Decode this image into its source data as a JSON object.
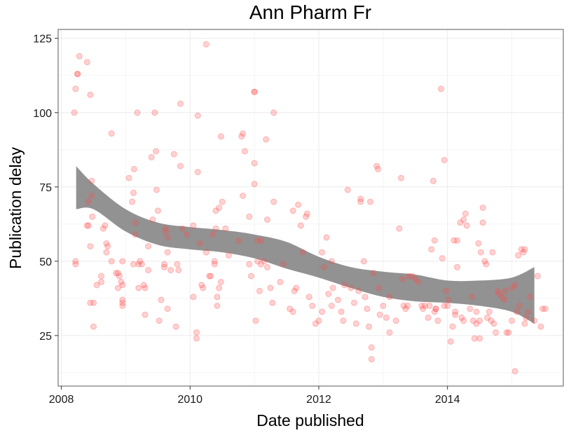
{
  "chart_data": {
    "type": "scatter",
    "title": "Ann Pharm Fr",
    "xlabel": "Date published",
    "ylabel": "Publication delay",
    "x_is_date": true,
    "xlim": [
      2007.95,
      2015.8
    ],
    "ylim": [
      8,
      128
    ],
    "x_ticks": [
      2008,
      2010,
      2012,
      2014
    ],
    "x_tick_labels": [
      "2008",
      "2010",
      "2012",
      "2014"
    ],
    "y_ticks": [
      25,
      50,
      75,
      100,
      125
    ],
    "y_tick_labels": [
      "25",
      "50",
      "75",
      "100",
      "125"
    ],
    "grid": true,
    "background": "#ffffff",
    "panel_border_color": "#7f7f7f",
    "point_color": "#ff4d4d",
    "point_opacity": 0.25,
    "band_color": "#7f7f7f",
    "series": [
      {
        "points": [
          [
            2008.2,
            100
          ],
          [
            2008.22,
            108
          ],
          [
            2008.25,
            113
          ],
          [
            2008.25,
            113
          ],
          [
            2008.28,
            119
          ],
          [
            2008.22,
            50
          ],
          [
            2008.22,
            49
          ],
          [
            2008.4,
            117
          ],
          [
            2008.45,
            106
          ],
          [
            2008.4,
            62
          ],
          [
            2008.42,
            62
          ],
          [
            2008.42,
            70
          ],
          [
            2008.47,
            72
          ],
          [
            2008.47,
            77
          ],
          [
            2008.48,
            65
          ],
          [
            2008.45,
            55
          ],
          [
            2008.45,
            36
          ],
          [
            2008.5,
            36
          ],
          [
            2008.5,
            28
          ],
          [
            2008.55,
            42
          ],
          [
            2008.62,
            45
          ],
          [
            2008.65,
            61
          ],
          [
            2008.68,
            62
          ],
          [
            2008.7,
            56
          ],
          [
            2008.7,
            53
          ],
          [
            2008.72,
            55
          ],
          [
            2008.62,
            43
          ],
          [
            2008.78,
            50
          ],
          [
            2008.78,
            93
          ],
          [
            2008.85,
            46
          ],
          [
            2008.88,
            46
          ],
          [
            2008.9,
            45
          ],
          [
            2008.93,
            43
          ],
          [
            2008.95,
            50
          ],
          [
            2008.95,
            36
          ],
          [
            2008.95,
            35
          ],
          [
            2008.95,
            37
          ],
          [
            2008.88,
            41
          ],
          [
            2008.95,
            42
          ],
          [
            2009.05,
            78
          ],
          [
            2009.1,
            70
          ],
          [
            2009.12,
            73
          ],
          [
            2009.13,
            81
          ],
          [
            2009.15,
            63
          ],
          [
            2009.15,
            59
          ],
          [
            2009.2,
            49
          ],
          [
            2009.22,
            50
          ],
          [
            2009.25,
            49
          ],
          [
            2009.28,
            42
          ],
          [
            2009.3,
            32
          ],
          [
            2009.3,
            41
          ],
          [
            2009.2,
            41
          ],
          [
            2009.12,
            49
          ],
          [
            2009.18,
            100
          ],
          [
            2009.35,
            55
          ],
          [
            2009.35,
            47
          ],
          [
            2009.4,
            85
          ],
          [
            2009.42,
            64
          ],
          [
            2009.45,
            100
          ],
          [
            2009.47,
            87
          ],
          [
            2009.48,
            74
          ],
          [
            2009.5,
            67
          ],
          [
            2009.52,
            30
          ],
          [
            2009.55,
            37
          ],
          [
            2009.6,
            49
          ],
          [
            2009.62,
            60
          ],
          [
            2009.62,
            61
          ],
          [
            2009.65,
            58
          ],
          [
            2009.65,
            53
          ],
          [
            2009.6,
            48
          ],
          [
            2009.65,
            34
          ],
          [
            2009.75,
            86
          ],
          [
            2009.78,
            28
          ],
          [
            2009.8,
            49
          ],
          [
            2009.82,
            47
          ],
          [
            2009.85,
            103
          ],
          [
            2009.85,
            82
          ],
          [
            2009.88,
            61
          ],
          [
            2009.7,
            47
          ],
          [
            2009.95,
            59
          ],
          [
            2010.05,
            62
          ],
          [
            2010.05,
            38
          ],
          [
            2010.1,
            24
          ],
          [
            2010.1,
            26
          ],
          [
            2010.12,
            99
          ],
          [
            2010.12,
            80
          ],
          [
            2010.15,
            56
          ],
          [
            2010.18,
            42
          ],
          [
            2010.2,
            41
          ],
          [
            2010.25,
            123
          ],
          [
            2010.25,
            53
          ],
          [
            2010.3,
            45
          ],
          [
            2010.32,
            45
          ],
          [
            2010.35,
            59
          ],
          [
            2010.38,
            50
          ],
          [
            2010.38,
            49
          ],
          [
            2010.4,
            61
          ],
          [
            2010.42,
            38
          ],
          [
            2010.42,
            35
          ],
          [
            2010.45,
            41
          ],
          [
            2010.48,
            43
          ],
          [
            2010.4,
            67
          ],
          [
            2010.45,
            68
          ],
          [
            2010.48,
            92
          ],
          [
            2010.5,
            70
          ],
          [
            2010.55,
            61
          ],
          [
            2010.6,
            52
          ],
          [
            2010.75,
            57
          ],
          [
            2010.8,
            92
          ],
          [
            2010.82,
            93
          ],
          [
            2010.82,
            72
          ],
          [
            2010.85,
            87
          ],
          [
            2010.92,
            65
          ],
          [
            2010.92,
            49
          ],
          [
            2010.95,
            45
          ],
          [
            2011.0,
            107
          ],
          [
            2011.0,
            107
          ],
          [
            2011.0,
            83
          ],
          [
            2011.0,
            76
          ],
          [
            2011.02,
            30
          ],
          [
            2011.05,
            57
          ],
          [
            2011.05,
            50
          ],
          [
            2011.08,
            40
          ],
          [
            2011.1,
            57
          ],
          [
            2011.1,
            49
          ],
          [
            2011.15,
            50
          ],
          [
            2011.18,
            91
          ],
          [
            2011.2,
            64
          ],
          [
            2011.2,
            48
          ],
          [
            2011.25,
            41
          ],
          [
            2011.28,
            36
          ],
          [
            2011.3,
            70
          ],
          [
            2011.3,
            100
          ],
          [
            2011.4,
            43
          ],
          [
            2011.45,
            49
          ],
          [
            2011.55,
            34
          ],
          [
            2011.6,
            67
          ],
          [
            2011.6,
            33
          ],
          [
            2011.62,
            40
          ],
          [
            2011.65,
            41
          ],
          [
            2011.68,
            69
          ],
          [
            2011.72,
            62
          ],
          [
            2011.75,
            53
          ],
          [
            2011.8,
            65
          ],
          [
            2011.82,
            66
          ],
          [
            2011.85,
            38
          ],
          [
            2011.9,
            35
          ],
          [
            2011.95,
            29
          ],
          [
            2012.0,
            30
          ],
          [
            2012.05,
            33
          ],
          [
            2012.05,
            53
          ],
          [
            2012.08,
            48
          ],
          [
            2012.12,
            58
          ],
          [
            2012.15,
            39
          ],
          [
            2012.2,
            35
          ],
          [
            2012.2,
            50
          ],
          [
            2012.22,
            41
          ],
          [
            2012.3,
            37
          ],
          [
            2012.35,
            33
          ],
          [
            2012.38,
            30
          ],
          [
            2012.4,
            42
          ],
          [
            2012.45,
            74
          ],
          [
            2012.5,
            41
          ],
          [
            2012.55,
            36
          ],
          [
            2012.58,
            29
          ],
          [
            2012.62,
            40
          ],
          [
            2012.65,
            70
          ],
          [
            2012.65,
            71
          ],
          [
            2012.7,
            50
          ],
          [
            2012.72,
            38
          ],
          [
            2012.75,
            34
          ],
          [
            2012.78,
            28
          ],
          [
            2012.8,
            70
          ],
          [
            2012.82,
            21
          ],
          [
            2012.82,
            17
          ],
          [
            2012.85,
            46
          ],
          [
            2012.9,
            82
          ],
          [
            2012.92,
            81
          ],
          [
            2012.93,
            41
          ],
          [
            2012.95,
            32
          ],
          [
            2013.0,
            35
          ],
          [
            2013.05,
            31
          ],
          [
            2013.1,
            38
          ],
          [
            2013.1,
            26
          ],
          [
            2013.2,
            30
          ],
          [
            2013.25,
            61
          ],
          [
            2013.28,
            78
          ],
          [
            2013.3,
            44
          ],
          [
            2013.32,
            35
          ],
          [
            2013.35,
            34
          ],
          [
            2013.38,
            35
          ],
          [
            2013.4,
            45
          ],
          [
            2013.45,
            45
          ],
          [
            2013.5,
            44
          ],
          [
            2013.55,
            43
          ],
          [
            2013.6,
            35
          ],
          [
            2013.62,
            34
          ],
          [
            2013.65,
            35
          ],
          [
            2013.7,
            31
          ],
          [
            2013.72,
            35
          ],
          [
            2013.75,
            54
          ],
          [
            2013.78,
            77
          ],
          [
            2013.8,
            57
          ],
          [
            2013.8,
            33
          ],
          [
            2013.82,
            34
          ],
          [
            2013.82,
            34
          ],
          [
            2013.85,
            30
          ],
          [
            2013.9,
            108
          ],
          [
            2013.92,
            51
          ],
          [
            2013.95,
            84
          ],
          [
            2013.95,
            35
          ],
          [
            2013.98,
            40
          ],
          [
            2014.0,
            35
          ],
          [
            2014.02,
            37
          ],
          [
            2014.05,
            23
          ],
          [
            2014.08,
            28
          ],
          [
            2014.1,
            57
          ],
          [
            2014.12,
            33
          ],
          [
            2014.12,
            32
          ],
          [
            2014.15,
            57
          ],
          [
            2014.15,
            48
          ],
          [
            2014.2,
            63
          ],
          [
            2014.22,
            31
          ],
          [
            2014.25,
            30
          ],
          [
            2014.25,
            64
          ],
          [
            2014.28,
            66
          ],
          [
            2014.3,
            62
          ],
          [
            2014.35,
            34
          ],
          [
            2014.38,
            38
          ],
          [
            2014.4,
            30
          ],
          [
            2014.42,
            24
          ],
          [
            2014.45,
            29
          ],
          [
            2014.45,
            33
          ],
          [
            2014.48,
            56
          ],
          [
            2014.5,
            24
          ],
          [
            2014.5,
            30
          ],
          [
            2014.52,
            53
          ],
          [
            2014.55,
            68
          ],
          [
            2014.55,
            63
          ],
          [
            2014.58,
            50
          ],
          [
            2014.6,
            49
          ],
          [
            2014.62,
            31
          ],
          [
            2014.65,
            33
          ],
          [
            2014.68,
            30
          ],
          [
            2014.7,
            53
          ],
          [
            2014.72,
            29
          ],
          [
            2014.75,
            26
          ],
          [
            2014.78,
            40
          ],
          [
            2014.8,
            39
          ],
          [
            2014.85,
            38
          ],
          [
            2014.88,
            37
          ],
          [
            2014.9,
            40
          ],
          [
            2014.92,
            26
          ],
          [
            2014.95,
            26
          ],
          [
            2015.0,
            30
          ],
          [
            2015.0,
            41
          ],
          [
            2015.05,
            42
          ],
          [
            2015.05,
            13
          ],
          [
            2015.08,
            33
          ],
          [
            2015.1,
            52
          ],
          [
            2015.12,
            35
          ],
          [
            2015.15,
            54
          ],
          [
            2015.18,
            53
          ],
          [
            2015.2,
            54
          ],
          [
            2015.2,
            29
          ],
          [
            2015.22,
            31
          ],
          [
            2015.25,
            33
          ],
          [
            2015.28,
            38
          ],
          [
            2015.35,
            30
          ],
          [
            2015.4,
            45
          ],
          [
            2015.45,
            28
          ],
          [
            2015.48,
            34
          ],
          [
            2015.52,
            34
          ]
        ]
      }
    ],
    "smooth": {
      "x": [
        2008.23,
        2008.5,
        2009.0,
        2009.5,
        2010.0,
        2010.5,
        2011.0,
        2011.5,
        2012.0,
        2012.5,
        2013.0,
        2013.5,
        2014.0,
        2014.5,
        2015.0,
        2015.35
      ],
      "upper": [
        82,
        76,
        67.5,
        63,
        61.5,
        60.5,
        59,
        56.5,
        51.5,
        48,
        46.5,
        45.5,
        43.5,
        43.5,
        44.5,
        48
      ],
      "lower": [
        67.5,
        67.5,
        60,
        55.5,
        54,
        53,
        51,
        47.5,
        44.5,
        41,
        38,
        36.5,
        36,
        35,
        33,
        29
      ]
    }
  }
}
